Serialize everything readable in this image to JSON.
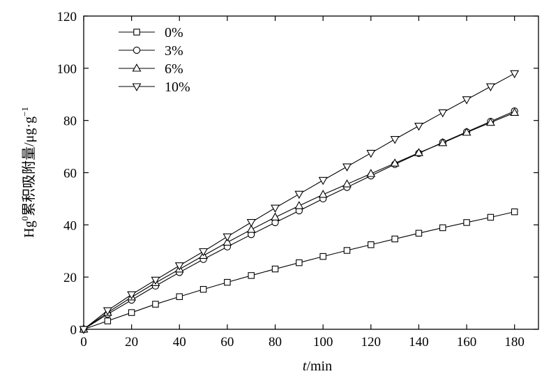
{
  "chart_data": {
    "type": "line",
    "xlabel": {
      "italic": "t",
      "rest": "/min"
    },
    "ylabel": {
      "base": "Hg",
      "sup": "0",
      "text": "累积吸附量/μg·g",
      "unit_sup": "−1"
    },
    "xlim": [
      0,
      190
    ],
    "ylim": [
      0,
      120
    ],
    "x_ticks": [
      0,
      20,
      40,
      60,
      80,
      100,
      120,
      140,
      160,
      180
    ],
    "y_ticks": [
      0,
      20,
      40,
      60,
      80,
      100,
      120
    ],
    "grid": false,
    "legend_position": "top-left",
    "x": [
      0,
      10,
      20,
      30,
      40,
      50,
      60,
      70,
      80,
      90,
      100,
      110,
      120,
      130,
      140,
      150,
      160,
      170,
      180
    ],
    "series": [
      {
        "name": "0%",
        "marker": "square",
        "values": [
          0,
          3.2,
          6.4,
          9.6,
          12.5,
          15.3,
          18.0,
          20.6,
          23.1,
          25.5,
          27.9,
          30.2,
          32.4,
          34.6,
          36.8,
          38.9,
          40.9,
          42.9,
          45.0
        ]
      },
      {
        "name": "3%",
        "marker": "circle",
        "values": [
          0,
          5.8,
          11.2,
          16.6,
          21.8,
          26.8,
          31.6,
          36.3,
          40.9,
          45.4,
          50.0,
          54.4,
          58.8,
          63.2,
          67.4,
          71.6,
          75.6,
          79.6,
          83.6
        ]
      },
      {
        "name": "6%",
        "marker": "triangle-up",
        "values": [
          0,
          6.4,
          12.3,
          17.8,
          23.0,
          28.2,
          33.3,
          38.2,
          42.9,
          47.3,
          51.6,
          55.6,
          59.6,
          63.6,
          67.6,
          71.4,
          75.4,
          79.2,
          83.0
        ]
      },
      {
        "name": "10%",
        "marker": "triangle-down",
        "values": [
          0,
          7.2,
          13.3,
          18.9,
          24.4,
          29.8,
          35.5,
          41.0,
          46.5,
          51.8,
          57.1,
          62.3,
          67.5,
          72.8,
          77.9,
          83.0,
          88.0,
          93.0,
          98.0
        ]
      }
    ]
  }
}
